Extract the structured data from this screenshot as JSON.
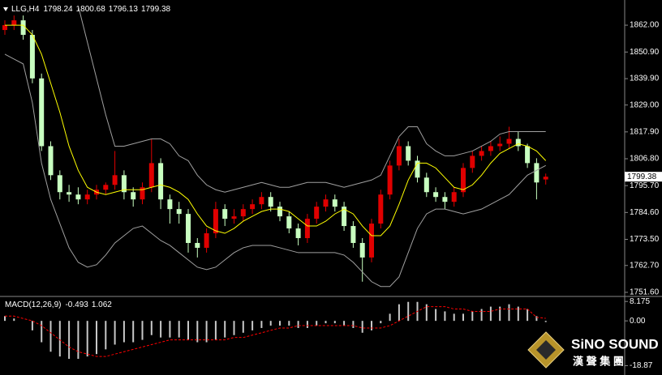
{
  "chart_data": [
    {
      "type": "candlestick",
      "title": "LLG,H4",
      "open": [
        1860,
        1862,
        1864,
        1858,
        1840,
        1812,
        1800,
        1793,
        1792,
        1790,
        1792,
        1794,
        1796,
        1800,
        1793,
        1790,
        1795,
        1805,
        1790,
        1786,
        1784,
        1772,
        1770,
        1776,
        1786,
        1782,
        1783,
        1786,
        1788,
        1791,
        1787,
        1783,
        1778,
        1774,
        1782,
        1787,
        1790,
        1787,
        1779,
        1772,
        1766,
        1780,
        1792,
        1804,
        1812,
        1806,
        1799,
        1793,
        1791,
        1789,
        1793,
        1803,
        1808,
        1810,
        1812,
        1813,
        1815,
        1812,
        1805,
        1798.24
      ],
      "high": [
        1864,
        1866,
        1866,
        1860,
        1842,
        1814,
        1802,
        1796,
        1795,
        1794,
        1796,
        1797,
        1810,
        1802,
        1795,
        1797,
        1815,
        1807,
        1792,
        1789,
        1786,
        1774,
        1778,
        1789,
        1788,
        1786,
        1788,
        1790,
        1793,
        1793,
        1789,
        1785,
        1780,
        1784,
        1789,
        1792,
        1792,
        1789,
        1781,
        1774,
        1782,
        1794,
        1806,
        1815,
        1814,
        1808,
        1801,
        1795,
        1793,
        1795,
        1805,
        1810,
        1812,
        1814,
        1816,
        1820,
        1818,
        1813,
        1807,
        1800.68
      ],
      "low": [
        1858,
        1860,
        1856,
        1838,
        1810,
        1798,
        1790,
        1789,
        1788,
        1788,
        1790,
        1792,
        1794,
        1790,
        1787,
        1788,
        1793,
        1786,
        1780,
        1780,
        1768,
        1766,
        1768,
        1774,
        1779,
        1780,
        1781,
        1784,
        1786,
        1785,
        1781,
        1776,
        1771,
        1772,
        1780,
        1785,
        1785,
        1777,
        1770,
        1756,
        1764,
        1778,
        1790,
        1802,
        1804,
        1797,
        1791,
        1789,
        1786,
        1787,
        1791,
        1801,
        1806,
        1808,
        1810,
        1811,
        1810,
        1803,
        1790,
        1796.13
      ],
      "close": [
        1862,
        1864,
        1858,
        1840,
        1812,
        1800,
        1793,
        1792,
        1790,
        1792,
        1794,
        1796,
        1800,
        1793,
        1790,
        1795,
        1805,
        1790,
        1786,
        1784,
        1772,
        1770,
        1776,
        1786,
        1782,
        1783,
        1786,
        1788,
        1791,
        1787,
        1783,
        1778,
        1774,
        1782,
        1787,
        1790,
        1787,
        1779,
        1772,
        1766,
        1780,
        1792,
        1804,
        1812,
        1806,
        1799,
        1793,
        1791,
        1789,
        1793,
        1803,
        1808,
        1810,
        1812,
        1813,
        1815,
        1812,
        1805,
        1797,
        1799.38
      ],
      "up_color": "#e00000",
      "down_color": "#c8ffc0",
      "lines": [
        {
          "color": "#ffff00",
          "values": [
            1862,
            1862,
            1862,
            1858,
            1850,
            1838,
            1826,
            1812,
            1802,
            1795,
            1793,
            1792,
            1793,
            1794,
            1794,
            1794,
            1795,
            1796,
            1795,
            1793,
            1790,
            1784,
            1779,
            1777,
            1776,
            1778,
            1781,
            1783,
            1785,
            1786,
            1786,
            1785,
            1782,
            1779,
            1779,
            1781,
            1784,
            1786,
            1784,
            1779,
            1775,
            1775,
            1779,
            1788,
            1798,
            1805,
            1805,
            1803,
            1799,
            1795,
            1794,
            1796,
            1800,
            1805,
            1809,
            1811,
            1813,
            1812,
            1810,
            1806
          ]
        },
        {
          "color": "#a0a0a0",
          "values": [
            null,
            null,
            null,
            null,
            null,
            null,
            null,
            null,
            1870,
            1855,
            1840,
            1825,
            1812,
            1812,
            1813,
            1814,
            1815,
            1815,
            1813,
            1808,
            1806,
            1800,
            1796,
            1794,
            1793,
            1794,
            1795,
            1796,
            1797,
            1796,
            1795,
            1795,
            1796,
            1797,
            1797,
            1797,
            1796,
            1795,
            1796,
            1797,
            1798,
            1800,
            1808,
            1816,
            1820,
            1820,
            1813,
            1810,
            1808,
            1808,
            1809,
            1810,
            1812,
            1814,
            1817,
            1818,
            1818,
            1818,
            1818,
            1818
          ]
        },
        {
          "color": "#a0a0a0",
          "values": [
            1850,
            1848,
            1846,
            1830,
            1805,
            1790,
            1780,
            1770,
            1764,
            1762,
            1763,
            1767,
            1772,
            1775,
            1778,
            1779,
            1776,
            1773,
            1771,
            1768,
            1765,
            1762,
            1761,
            1762,
            1765,
            1768,
            1770,
            1771,
            1771,
            1771,
            1770,
            1769,
            1768,
            1768,
            1768,
            1768,
            1768,
            1767,
            1764,
            1760,
            1756,
            1754,
            1754,
            1758,
            1768,
            1778,
            1784,
            1786,
            1786,
            1785,
            1784,
            1785,
            1786,
            1788,
            1790,
            1792,
            1796,
            1800,
            1802,
            1804
          ]
        }
      ],
      "ylim": [
        1749.9,
        1872.4
      ],
      "yticks": [
        {
          "value": 1862,
          "label": "1862.00"
        },
        {
          "value": 1850.9,
          "label": "1850.90"
        },
        {
          "value": 1839.9,
          "label": "1839.90"
        },
        {
          "value": 1829,
          "label": "1829.00"
        },
        {
          "value": 1817.9,
          "label": "1817.90"
        },
        {
          "value": 1806.8,
          "label": "1806.80"
        },
        {
          "value": 1795.7,
          "label": "1795.70"
        },
        {
          "value": 1784.6,
          "label": "1784.60"
        },
        {
          "value": 1773.5,
          "label": "1773.50"
        },
        {
          "value": 1762.7,
          "label": "1762.70"
        },
        {
          "value": 1751.6,
          "label": "1751.60"
        }
      ]
    },
    {
      "type": "macd",
      "title": "MACD(12,26,9)",
      "values": [
        2,
        1,
        0,
        -4,
        -9,
        -13,
        -15,
        -16,
        -16,
        -15,
        -14,
        -12,
        -10,
        -9,
        -9,
        -8,
        -6,
        -7,
        -7,
        -7,
        -8,
        -9,
        -9,
        -8,
        -7,
        -6,
        -5,
        -4,
        -3,
        -2,
        -2,
        -2,
        -3,
        -3,
        -2,
        -1,
        -1,
        -2,
        -3,
        -5,
        -4,
        -1,
        3,
        7,
        8,
        8,
        7,
        5,
        4,
        3,
        3,
        4,
        5,
        6,
        6,
        7,
        6,
        5,
        2,
        -0.493
      ],
      "signal": [
        2,
        2,
        1,
        0,
        -2,
        -5,
        -8,
        -11,
        -13,
        -14,
        -15,
        -15,
        -14,
        -13,
        -12,
        -11,
        -10,
        -9,
        -8,
        -8,
        -8,
        -8,
        -8,
        -8,
        -8,
        -7,
        -7,
        -6,
        -5,
        -4,
        -3,
        -3,
        -2,
        -2,
        -2,
        -2,
        -2,
        -2,
        -2,
        -3,
        -3,
        -3,
        -2,
        0,
        2,
        4,
        6,
        6,
        6,
        5,
        5,
        4,
        4,
        4,
        5,
        5,
        5,
        5,
        1.5,
        1.062
      ],
      "hist_color": "#c8c8c8",
      "signal_color": "#ff0000",
      "ylim": [
        -22.8,
        9.95
      ],
      "yticks": [
        8.175,
        {
          "value": 0,
          "label": "0.00"
        },
        -18.87
      ]
    }
  ],
  "logo": {
    "name": "SiNO SOUND",
    "subtitle": "漢 聲 集 團"
  }
}
